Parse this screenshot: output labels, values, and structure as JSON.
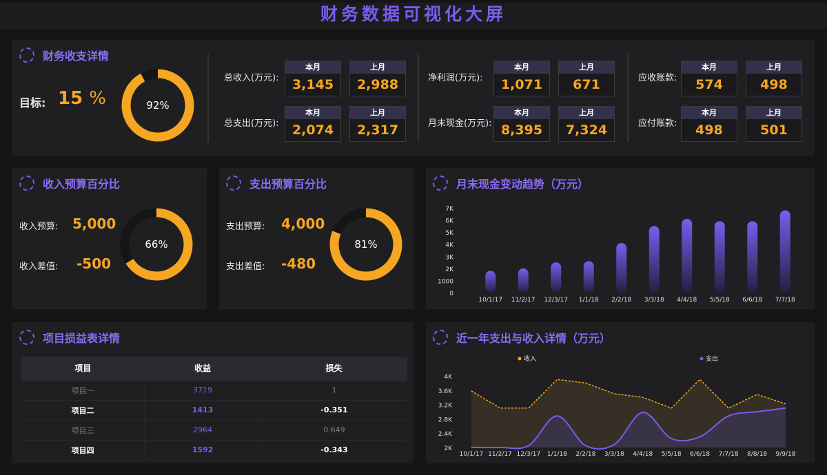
{
  "title": "财务数据可视化大屏",
  "colors": {
    "accent": "#7b5cf0",
    "value": "#f5a623",
    "track": "#151515"
  },
  "summary": {
    "title": "财务收支详情",
    "target_label": "目标:",
    "target_value": "15",
    "target_unit": "%",
    "completion": 0.92,
    "completion_label": "92%",
    "period_labels": {
      "current": "本月",
      "previous": "上月"
    },
    "metrics": [
      {
        "label": "总收入(万元):",
        "current": "3,145",
        "previous": "2,988"
      },
      {
        "label": "总支出(万元):",
        "current": "2,074",
        "previous": "2,317"
      },
      {
        "label": "净利润(万元):",
        "current": "1,071",
        "previous": "671"
      },
      {
        "label": "月末现金(万元):",
        "current": "8,395",
        "previous": "7,324"
      },
      {
        "label": "应收账款:",
        "current": "574",
        "previous": "498"
      },
      {
        "label": "应付账款:",
        "current": "498",
        "previous": "501"
      }
    ]
  },
  "income_budget": {
    "title": "收入预算百分比",
    "budget_label": "收入预算:",
    "budget_value": "5,000",
    "diff_label": "收入差值:",
    "diff_value": "-500",
    "percent": 0.66,
    "percent_label": "66%"
  },
  "expense_budget": {
    "title": "支出预算百分比",
    "budget_label": "支出预算:",
    "budget_value": "4,000",
    "diff_label": "支出差值:",
    "diff_value": "-480",
    "percent": 0.81,
    "percent_label": "81%"
  },
  "projects": {
    "title": "项目损益表详情",
    "headers": [
      "项目",
      "收益",
      "损失"
    ],
    "rows": [
      [
        "项目一",
        "3719",
        "1"
      ],
      [
        "项目二",
        "1413",
        "-0.351"
      ],
      [
        "项目三",
        "2964",
        "0.649"
      ],
      [
        "项目四",
        "1592",
        "-0.343"
      ]
    ]
  },
  "chart_data": [
    {
      "type": "bar",
      "title": "月末现金变动趋势（万元）",
      "categories": [
        "10/1/17",
        "11/2/17",
        "12/3/17",
        "1/1/18",
        "2/2/18",
        "3/3/18",
        "4/4/18",
        "5/5/18",
        "6/6/18",
        "7/7/18"
      ],
      "values": [
        1800,
        2000,
        2500,
        2600,
        4100,
        5500,
        6100,
        5900,
        5900,
        6800
      ],
      "ylim": [
        0,
        7000
      ],
      "yticks": [
        0,
        1000,
        2000,
        3000,
        4000,
        5000,
        6000,
        7000
      ],
      "ytick_labels": [
        "0",
        "1000",
        "2K",
        "3K",
        "4K",
        "5K",
        "6K",
        "7K"
      ]
    },
    {
      "type": "area",
      "title": "近一年支出与收入详情（万元）",
      "categories": [
        "10/1/17",
        "11/2/17",
        "12/3/17",
        "1/1/18",
        "2/2/18",
        "3/3/18",
        "4/4/18",
        "5/5/18",
        "6/6/18",
        "7/7/18",
        "8/8/18",
        "9/9/18"
      ],
      "series": [
        {
          "name": "收入",
          "color": "#f5a623",
          "values": [
            3580,
            3100,
            3100,
            3900,
            3800,
            3500,
            3400,
            3100,
            3900,
            3100,
            3480,
            3220
          ]
        },
        {
          "name": "支出",
          "color": "#7b5cf0",
          "values": [
            2000,
            2000,
            2050,
            2880,
            2050,
            2080,
            2980,
            2250,
            2300,
            2880,
            3000,
            3100
          ]
        }
      ],
      "ylim": [
        2000,
        4000
      ],
      "yticks": [
        2000,
        2400,
        2800,
        3200,
        3600,
        4000
      ],
      "ytick_labels": [
        "2K",
        "2.4K",
        "2.8K",
        "3.2K",
        "3.6K",
        "4K"
      ],
      "legend": "top"
    }
  ]
}
